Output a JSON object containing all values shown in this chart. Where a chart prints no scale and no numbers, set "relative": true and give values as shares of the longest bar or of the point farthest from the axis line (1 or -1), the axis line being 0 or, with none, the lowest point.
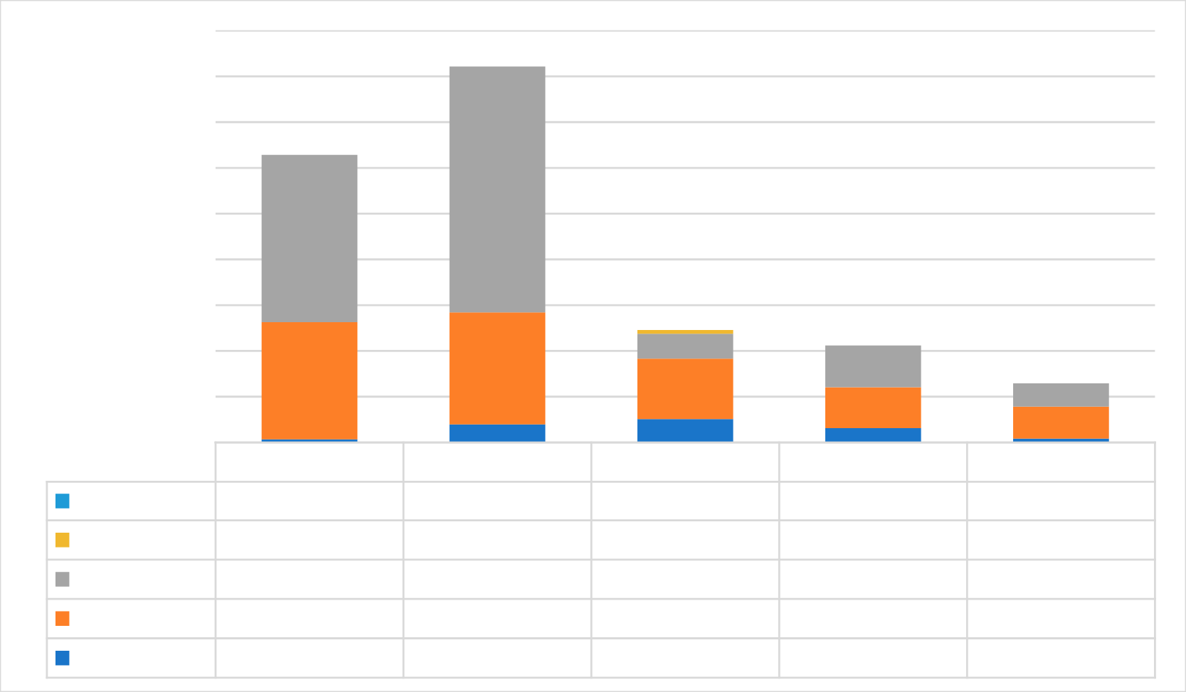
{
  "chart_data": {
    "type": "bar",
    "stacked": true,
    "relative": true,
    "grid": "y",
    "categories": [
      null,
      null,
      null,
      null,
      null
    ],
    "series": [
      {
        "color": "#1a75c9",
        "values": [
          0.008,
          0.048,
          0.062,
          0.038,
          0.01
        ]
      },
      {
        "color": "#fd7f27",
        "values": [
          0.312,
          0.298,
          0.161,
          0.109,
          0.085
        ]
      },
      {
        "color": "#a5a5a5",
        "values": [
          0.445,
          0.654,
          0.066,
          0.111,
          0.062
        ]
      },
      {
        "color": "#f0b82f",
        "values": [
          0,
          0,
          0.01,
          0,
          0
        ]
      },
      {
        "color": "#1e9bd7",
        "values": [
          0,
          0,
          0,
          0,
          0
        ]
      }
    ]
  }
}
